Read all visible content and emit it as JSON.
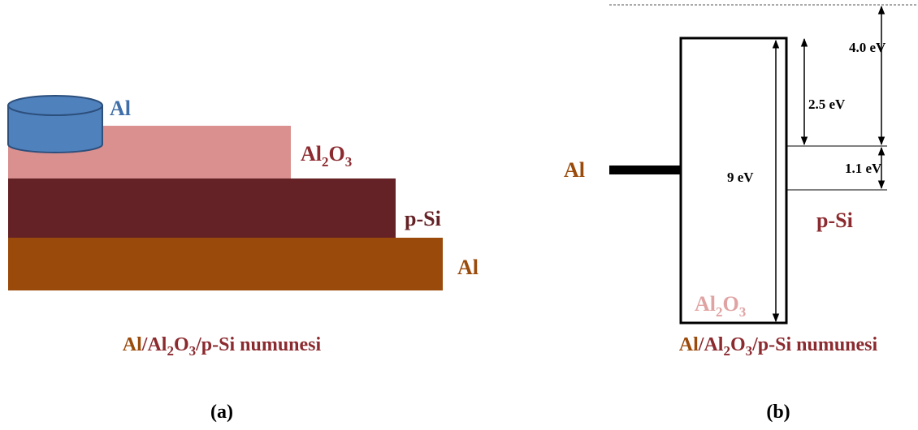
{
  "panel_a": {
    "labels": {
      "al_top": "Al",
      "al2o3": [
        "Al",
        "2",
        "O",
        "3"
      ],
      "psi": "p-Si",
      "al_bottom": "Al"
    },
    "caption": [
      "Al",
      "/",
      "Al",
      "2",
      "O",
      "3",
      "/p-Si numunesi"
    ],
    "tag": "(a)"
  },
  "panel_b": {
    "labels": {
      "al": "Al",
      "psi": "p-Si",
      "al2o3": [
        "Al",
        "2",
        "O",
        "3"
      ]
    },
    "energies": {
      "e40": "4.0 eV",
      "e25": "2.5 eV",
      "e11": "1.1 eV",
      "e9": "9 eV"
    },
    "caption": [
      "Al",
      "/",
      "Al",
      "2",
      "O",
      "3",
      "/p-Si numunesi"
    ],
    "tag": "(b)"
  }
}
